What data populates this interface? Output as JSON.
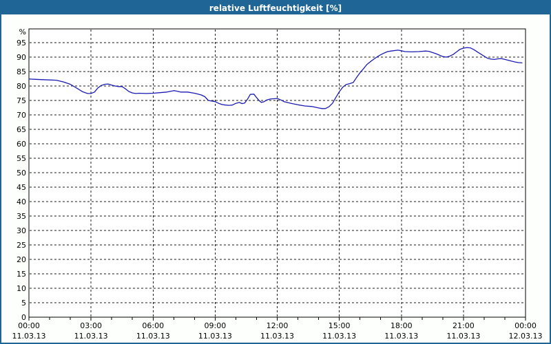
{
  "window": {
    "title": "relative Luftfeuchtigkeit [%]"
  },
  "colors": {
    "titlebar_bg": "#1f6596",
    "titlebar_text": "#ffffff",
    "window_border": "#1f6596",
    "background": "#fdfffd",
    "plot_background": "#ffffff",
    "line": "#1a1ab3",
    "grid": "#1a1a1a",
    "axis": "#000000",
    "tick_text": "#000000"
  },
  "chart_data": {
    "type": "line",
    "title": "relative Luftfeuchtigkeit [%]",
    "xlabel": "",
    "ylabel": "%",
    "ylim": [
      0,
      100
    ],
    "grid": true,
    "legend_position": "none",
    "y_ticks": [
      0,
      5,
      10,
      15,
      20,
      25,
      30,
      35,
      40,
      45,
      50,
      55,
      60,
      65,
      70,
      75,
      80,
      85,
      90,
      95
    ],
    "x_ticks": [
      {
        "hour": 0,
        "time": "00:00",
        "date": "11.03.13"
      },
      {
        "hour": 3,
        "time": "03:00",
        "date": "11.03.13"
      },
      {
        "hour": 6,
        "time": "06:00",
        "date": "11.03.13"
      },
      {
        "hour": 9,
        "time": "09:00",
        "date": "11.03.13"
      },
      {
        "hour": 12,
        "time": "12:00",
        "date": "11.03.13"
      },
      {
        "hour": 15,
        "time": "15:00",
        "date": "11.03.13"
      },
      {
        "hour": 18,
        "time": "18:00",
        "date": "11.03.13"
      },
      {
        "hour": 21,
        "time": "21:00",
        "date": "11.03.13"
      },
      {
        "hour": 24,
        "time": "00:00",
        "date": "12.03.13"
      }
    ],
    "minor_x_tick_interval_hours": 1,
    "series": [
      {
        "name": "relative Luftfeuchtigkeit [%]",
        "points": [
          [
            0,
            82.4
          ],
          [
            0.33,
            82.3
          ],
          [
            0.67,
            82.2
          ],
          [
            1,
            82.1
          ],
          [
            1.33,
            82
          ],
          [
            1.67,
            81.4
          ],
          [
            2,
            80.6
          ],
          [
            2.33,
            79.2
          ],
          [
            2.6,
            78
          ],
          [
            2.83,
            77.4
          ],
          [
            3,
            77.4
          ],
          [
            3.17,
            77.9
          ],
          [
            3.33,
            79.3
          ],
          [
            3.5,
            80.2
          ],
          [
            3.67,
            80.6
          ],
          [
            3.83,
            80.7
          ],
          [
            4,
            80.3
          ],
          [
            4.17,
            80
          ],
          [
            4.33,
            79.8
          ],
          [
            4.5,
            79.8
          ],
          [
            4.67,
            79
          ],
          [
            4.83,
            78.1
          ],
          [
            5,
            77.6
          ],
          [
            5.17,
            77.4
          ],
          [
            5.33,
            77.5
          ],
          [
            5.67,
            77.4
          ],
          [
            6,
            77.5
          ],
          [
            6.33,
            77.7
          ],
          [
            6.67,
            77.9
          ],
          [
            7,
            78.4
          ],
          [
            7.17,
            78.2
          ],
          [
            7.33,
            77.9
          ],
          [
            7.67,
            77.9
          ],
          [
            8,
            77.5
          ],
          [
            8.17,
            77.2
          ],
          [
            8.33,
            76.9
          ],
          [
            8.5,
            76.3
          ],
          [
            8.67,
            75
          ],
          [
            8.83,
            74.8
          ],
          [
            9,
            74.6
          ],
          [
            9.17,
            74
          ],
          [
            9.33,
            73.6
          ],
          [
            9.5,
            73.4
          ],
          [
            9.67,
            73.3
          ],
          [
            9.83,
            73.4
          ],
          [
            10,
            74
          ],
          [
            10.17,
            74.3
          ],
          [
            10.3,
            73.9
          ],
          [
            10.43,
            74.1
          ],
          [
            10.57,
            75.5
          ],
          [
            10.7,
            77.1
          ],
          [
            10.87,
            77.2
          ],
          [
            11,
            76
          ],
          [
            11.13,
            74.9
          ],
          [
            11.23,
            74.3
          ],
          [
            11.37,
            74.6
          ],
          [
            11.5,
            75.2
          ],
          [
            11.67,
            75.5
          ],
          [
            12,
            75.7
          ],
          [
            12.17,
            75.2
          ],
          [
            12.33,
            74.6
          ],
          [
            12.67,
            74
          ],
          [
            13,
            73.5
          ],
          [
            13.33,
            73.1
          ],
          [
            13.67,
            72.9
          ],
          [
            14,
            72.4
          ],
          [
            14.17,
            72.2
          ],
          [
            14.33,
            72.2
          ],
          [
            14.5,
            72.8
          ],
          [
            14.67,
            74
          ],
          [
            14.83,
            76
          ],
          [
            15,
            78
          ],
          [
            15.17,
            79.6
          ],
          [
            15.33,
            80.5
          ],
          [
            15.5,
            80.8
          ],
          [
            15.67,
            81.2
          ],
          [
            15.83,
            82.9
          ],
          [
            16,
            84.6
          ],
          [
            16.17,
            86
          ],
          [
            16.33,
            87.4
          ],
          [
            16.5,
            88.4
          ],
          [
            16.67,
            89.3
          ],
          [
            16.83,
            90.1
          ],
          [
            17,
            90.8
          ],
          [
            17.17,
            91.4
          ],
          [
            17.33,
            91.9
          ],
          [
            17.5,
            92.1
          ],
          [
            17.83,
            92.4
          ],
          [
            18,
            92.2
          ],
          [
            18.17,
            91.9
          ],
          [
            18.5,
            91.8
          ],
          [
            18.83,
            91.9
          ],
          [
            19.17,
            92.1
          ],
          [
            19.33,
            92
          ],
          [
            19.67,
            91.2
          ],
          [
            20,
            90.2
          ],
          [
            20.17,
            90
          ],
          [
            20.33,
            90.3
          ],
          [
            20.5,
            90.9
          ],
          [
            20.67,
            91.8
          ],
          [
            20.83,
            92.7
          ],
          [
            21,
            93.1
          ],
          [
            21.17,
            93.3
          ],
          [
            21.33,
            93.2
          ],
          [
            21.5,
            92.6
          ],
          [
            21.67,
            91.8
          ],
          [
            21.83,
            91.1
          ],
          [
            22,
            90.3
          ],
          [
            22.17,
            89.6
          ],
          [
            22.33,
            89.3
          ],
          [
            22.5,
            89.2
          ],
          [
            22.67,
            89.4
          ],
          [
            22.83,
            89.5
          ],
          [
            23,
            89.2
          ],
          [
            23.17,
            88.9
          ],
          [
            23.33,
            88.6
          ],
          [
            23.5,
            88.3
          ],
          [
            23.67,
            88.1
          ],
          [
            23.83,
            88
          ]
        ]
      }
    ]
  }
}
